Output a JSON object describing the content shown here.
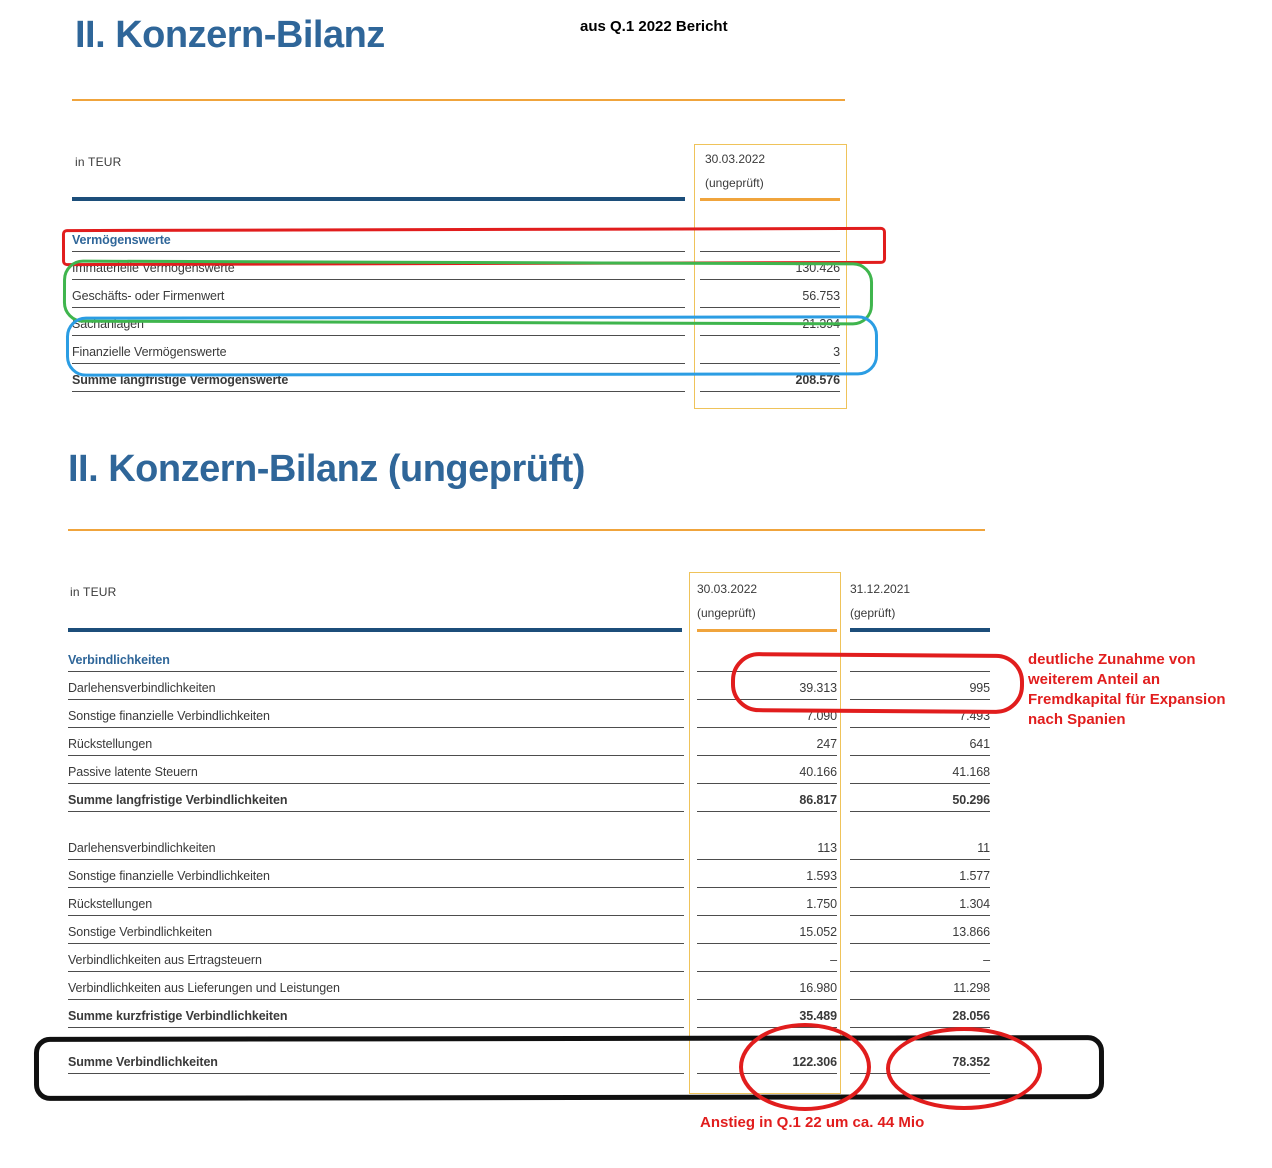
{
  "colors": {
    "title_blue": "#2f6699",
    "navy_rule": "#1c4e7a",
    "orange_rule": "#f0a43c",
    "column_box_yellow": "#efc35a",
    "annotation_red": "#e11d1d",
    "annotation_green": "#3fb54d",
    "annotation_blue": "#2b9de3",
    "annotation_black": "#101010"
  },
  "section1": {
    "title": "II. Konzern-Bilanz",
    "unit_label": "in TEUR",
    "columns": [
      {
        "date": "30.03.2022",
        "status": "(ungeprüft)"
      }
    ],
    "group_label": "Vermögenswerte",
    "rows": [
      {
        "label": "Immaterielle Vermögenswerte",
        "values": [
          "130.426"
        ],
        "bold": false
      },
      {
        "label": "Geschäfts- oder Firmenwert",
        "values": [
          "56.753"
        ],
        "bold": false
      },
      {
        "label": "Sachanlagen",
        "values": [
          "21.394"
        ],
        "bold": false
      },
      {
        "label": "Finanzielle Vermögenswerte",
        "values": [
          "3"
        ],
        "bold": false
      },
      {
        "label": "Summe langfristige Vermögenswerte",
        "values": [
          "208.576"
        ],
        "bold": true
      }
    ]
  },
  "section2": {
    "title": "II. Konzern-Bilanz (ungeprüft)",
    "unit_label": "in TEUR",
    "columns": [
      {
        "date": "30.03.2022",
        "status": "(ungeprüft)"
      },
      {
        "date": "31.12.2021",
        "status": "(geprüft)"
      }
    ],
    "group_label": "Verbindlichkeiten",
    "blocks": [
      {
        "rows": [
          {
            "label": "Darlehensverbindlichkeiten",
            "values": [
              "39.313",
              "995"
            ],
            "bold": false
          },
          {
            "label": "Sonstige finanzielle Verbindlichkeiten",
            "values": [
              "7.090",
              "7.493"
            ],
            "bold": false
          },
          {
            "label": "Rückstellungen",
            "values": [
              "247",
              "641"
            ],
            "bold": false
          },
          {
            "label": "Passive latente Steuern",
            "values": [
              "40.166",
              "41.168"
            ],
            "bold": false
          },
          {
            "label": "Summe langfristige Verbindlichkeiten",
            "values": [
              "86.817",
              "50.296"
            ],
            "bold": true
          }
        ]
      },
      {
        "rows": [
          {
            "label": "Darlehensverbindlichkeiten",
            "values": [
              "113",
              "11"
            ],
            "bold": false
          },
          {
            "label": "Sonstige finanzielle Verbindlichkeiten",
            "values": [
              "1.593",
              "1.577"
            ],
            "bold": false
          },
          {
            "label": "Rückstellungen",
            "values": [
              "1.750",
              "1.304"
            ],
            "bold": false
          },
          {
            "label": "Sonstige Verbindlichkeiten",
            "values": [
              "15.052",
              "13.866"
            ],
            "bold": false
          },
          {
            "label": "Verbindlichkeiten aus Ertragsteuern",
            "values": [
              "–",
              "–"
            ],
            "bold": false
          },
          {
            "label": "Verbindlichkeiten aus Lieferungen und Leistungen",
            "values": [
              "16.980",
              "11.298"
            ],
            "bold": false
          },
          {
            "label": "Summe kurzfristige Verbindlichkeiten",
            "values": [
              "35.489",
              "28.056"
            ],
            "bold": true
          }
        ]
      },
      {
        "rows": [
          {
            "label": "Summe Verbindlichkeiten",
            "values": [
              "122.306",
              "78.352"
            ],
            "bold": true
          }
        ]
      }
    ]
  },
  "annotations": {
    "source_note": "aus Q.1 2022 Bericht",
    "debt_note_lines": [
      "deutliche Zunahme von",
      "weiterem Anteil an",
      "Fremdkapital für Expansion",
      "nach Spanien"
    ],
    "increase_note": "Anstieg in Q.1 22 um ca. 44 Mio"
  }
}
